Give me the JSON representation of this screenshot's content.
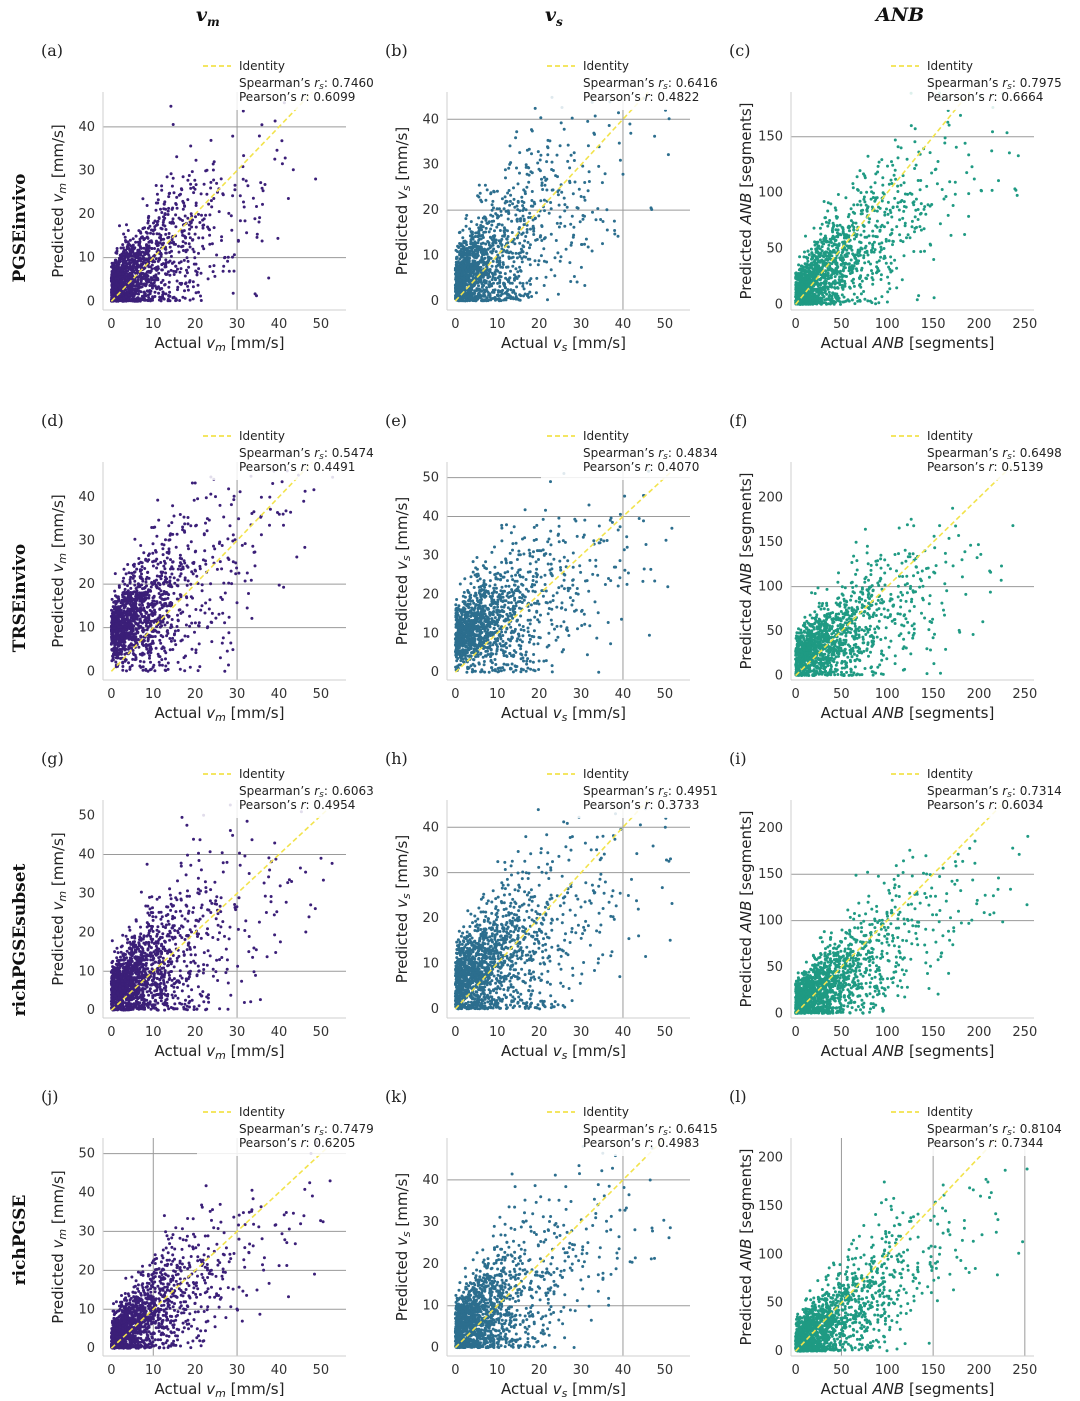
{
  "column_headers": [
    "v_m",
    "v_s",
    "ANB"
  ],
  "column_header_display": [
    {
      "main": "v",
      "sub": "m"
    },
    {
      "main": "v",
      "sub": "s"
    },
    {
      "main": "ANB",
      "sub": ""
    }
  ],
  "row_headers": [
    "PGSEinvivo",
    "TRSEinvivo",
    "richPGSEsubset",
    "richPGSE"
  ],
  "legend_identity": "Identity",
  "colors": {
    "vm": "#3b1f78",
    "vs": "#2c6e8e",
    "anb": "#1f9a83",
    "identity": "#f2e34c",
    "grid": "#9a9a9a"
  },
  "chart_data": [
    {
      "panel": "(a)",
      "type": "scatter",
      "row": 0,
      "col": 0,
      "metric": "vm",
      "xlabel": "Actual v_m [mm/s]",
      "ylabel": "Predicted v_m [mm/s]",
      "xlim": [
        -2,
        56
      ],
      "ylim": [
        -2,
        48
      ],
      "xticks": [
        0,
        10,
        20,
        30,
        40,
        50
      ],
      "yticks": [
        0,
        10,
        20,
        30,
        40
      ],
      "grid_x": [
        30
      ],
      "grid_y": [
        10,
        40
      ],
      "spearman": "0.7460",
      "pearson": "0.6099",
      "n_points": 1500,
      "trend_slope": 0.65,
      "trend_intercept": 3.0,
      "spread": 6.5,
      "x_scale": 9
    },
    {
      "panel": "(b)",
      "type": "scatter",
      "row": 0,
      "col": 1,
      "metric": "vs",
      "xlabel": "Actual v_s [mm/s]",
      "ylabel": "Predicted v_s [mm/s]",
      "xlim": [
        -2,
        56
      ],
      "ylim": [
        -2,
        46
      ],
      "xticks": [
        0,
        10,
        20,
        30,
        40,
        50
      ],
      "yticks": [
        0,
        10,
        20,
        30,
        40
      ],
      "grid_x": [
        40
      ],
      "grid_y": [
        20,
        40
      ],
      "spearman": "0.6416",
      "pearson": "0.4822",
      "n_points": 1500,
      "trend_slope": 0.6,
      "trend_intercept": 4.0,
      "spread": 7.5,
      "x_scale": 9
    },
    {
      "panel": "(c)",
      "type": "scatter",
      "row": 0,
      "col": 2,
      "metric": "anb",
      "xlabel": "Actual ANB [segments]",
      "ylabel": "Predicted ANB [segments]",
      "xlim": [
        -5,
        260
      ],
      "ylim": [
        -5,
        190
      ],
      "xticks": [
        0,
        50,
        100,
        150,
        200,
        250
      ],
      "yticks": [
        0,
        50,
        100,
        150
      ],
      "grid_x": [],
      "grid_y": [
        150
      ],
      "spearman": "0.7975",
      "pearson": "0.6664",
      "n_points": 1500,
      "trend_slope": 0.62,
      "trend_intercept": 8,
      "spread": 25,
      "x_scale": 45
    },
    {
      "panel": "(d)",
      "type": "scatter",
      "row": 1,
      "col": 0,
      "metric": "vm",
      "xlabel": "Actual v_m [mm/s]",
      "ylabel": "Predicted v_m [mm/s]",
      "xlim": [
        -2,
        56
      ],
      "ylim": [
        -2,
        48
      ],
      "xticks": [
        0,
        10,
        20,
        30,
        40,
        50
      ],
      "yticks": [
        0,
        10,
        20,
        30,
        40
      ],
      "grid_x": [
        30
      ],
      "grid_y": [
        10,
        20
      ],
      "spearman": "0.5474",
      "pearson": "0.4491",
      "n_points": 1400,
      "trend_slope": 0.55,
      "trend_intercept": 9.0,
      "spread": 7.5,
      "x_scale": 9
    },
    {
      "panel": "(e)",
      "type": "scatter",
      "row": 1,
      "col": 1,
      "metric": "vs",
      "xlabel": "Actual v_s [mm/s]",
      "ylabel": "Predicted v_s [mm/s]",
      "xlim": [
        -2,
        56
      ],
      "ylim": [
        -2,
        54
      ],
      "xticks": [
        0,
        10,
        20,
        30,
        40,
        50
      ],
      "yticks": [
        0,
        10,
        20,
        30,
        40,
        50
      ],
      "grid_x": [
        40
      ],
      "grid_y": [
        40,
        50
      ],
      "spearman": "0.4834",
      "pearson": "0.4070",
      "n_points": 1400,
      "trend_slope": 0.5,
      "trend_intercept": 9.0,
      "spread": 8.0,
      "x_scale": 10
    },
    {
      "panel": "(f)",
      "type": "scatter",
      "row": 1,
      "col": 2,
      "metric": "anb",
      "xlabel": "Actual ANB [segments]",
      "ylabel": "Predicted ANB [segments]",
      "xlim": [
        -5,
        260
      ],
      "ylim": [
        -5,
        240
      ],
      "xticks": [
        0,
        50,
        100,
        150,
        200,
        250
      ],
      "yticks": [
        0,
        50,
        100,
        150,
        200
      ],
      "grid_x": [],
      "grid_y": [
        100
      ],
      "spearman": "0.6498",
      "pearson": "0.5139",
      "n_points": 1400,
      "trend_slope": 0.55,
      "trend_intercept": 18,
      "spread": 28,
      "x_scale": 48
    },
    {
      "panel": "(g)",
      "type": "scatter",
      "row": 2,
      "col": 0,
      "metric": "vm",
      "xlabel": "Actual v_m [mm/s]",
      "ylabel": "Predicted v_m [mm/s]",
      "xlim": [
        -2,
        56
      ],
      "ylim": [
        -2,
        54
      ],
      "xticks": [
        0,
        10,
        20,
        30,
        40,
        50
      ],
      "yticks": [
        0,
        10,
        20,
        30,
        40,
        50
      ],
      "grid_x": [
        30
      ],
      "grid_y": [
        10,
        40
      ],
      "spearman": "0.6063",
      "pearson": "0.4954",
      "n_points": 1600,
      "trend_slope": 0.6,
      "trend_intercept": 5.0,
      "spread": 7.5,
      "x_scale": 9
    },
    {
      "panel": "(h)",
      "type": "scatter",
      "row": 2,
      "col": 1,
      "metric": "vs",
      "xlabel": "Actual v_s [mm/s]",
      "ylabel": "Predicted v_s [mm/s]",
      "xlim": [
        -2,
        56
      ],
      "ylim": [
        -2,
        46
      ],
      "xticks": [
        0,
        10,
        20,
        30,
        40,
        50
      ],
      "yticks": [
        0,
        10,
        20,
        30,
        40
      ],
      "grid_x": [
        40
      ],
      "grid_y": [
        30,
        40
      ],
      "spearman": "0.4951",
      "pearson": "0.3733",
      "n_points": 1600,
      "trend_slope": 0.5,
      "trend_intercept": 6.0,
      "spread": 8.0,
      "x_scale": 10
    },
    {
      "panel": "(i)",
      "type": "scatter",
      "row": 2,
      "col": 2,
      "metric": "anb",
      "xlabel": "Actual ANB [segments]",
      "ylabel": "Predicted ANB [segments]",
      "xlim": [
        -5,
        260
      ],
      "ylim": [
        -5,
        230
      ],
      "xticks": [
        0,
        50,
        100,
        150,
        200,
        250
      ],
      "yticks": [
        0,
        50,
        100,
        150,
        200
      ],
      "grid_x": [],
      "grid_y": [
        100,
        150
      ],
      "spearman": "0.7314",
      "pearson": "0.6034",
      "n_points": 1600,
      "trend_slope": 0.6,
      "trend_intercept": 10,
      "spread": 26,
      "x_scale": 45
    },
    {
      "panel": "(j)",
      "type": "scatter",
      "row": 3,
      "col": 0,
      "metric": "vm",
      "xlabel": "Actual v_m [mm/s]",
      "ylabel": "Predicted v_m [mm/s]",
      "xlim": [
        -2,
        56
      ],
      "ylim": [
        -2,
        54
      ],
      "xticks": [
        0,
        10,
        20,
        30,
        40,
        50
      ],
      "yticks": [
        0,
        10,
        20,
        30,
        40,
        50
      ],
      "grid_x": [
        10,
        30
      ],
      "grid_y": [
        10,
        20,
        30,
        50
      ],
      "spearman": "0.7479",
      "pearson": "0.6205",
      "n_points": 1500,
      "trend_slope": 0.68,
      "trend_intercept": 2.5,
      "spread": 6.0,
      "x_scale": 9
    },
    {
      "panel": "(k)",
      "type": "scatter",
      "row": 3,
      "col": 1,
      "metric": "vs",
      "xlabel": "Actual v_s [mm/s]",
      "ylabel": "Predicted v_s [mm/s]",
      "xlim": [
        -2,
        56
      ],
      "ylim": [
        -2,
        50
      ],
      "xticks": [
        0,
        10,
        20,
        30,
        40,
        50
      ],
      "yticks": [
        0,
        10,
        20,
        30,
        40
      ],
      "grid_x": [
        40
      ],
      "grid_y": [
        10,
        40
      ],
      "spearman": "0.6415",
      "pearson": "0.4983",
      "n_points": 1500,
      "trend_slope": 0.6,
      "trend_intercept": 4.0,
      "spread": 7.5,
      "x_scale": 9
    },
    {
      "panel": "(l)",
      "type": "scatter",
      "row": 3,
      "col": 2,
      "metric": "anb",
      "xlabel": "Actual ANB [segments]",
      "ylabel": "Predicted ANB [segments]",
      "xlim": [
        -5,
        260
      ],
      "ylim": [
        -5,
        220
      ],
      "xticks": [
        0,
        50,
        100,
        150,
        200,
        250
      ],
      "yticks": [
        0,
        50,
        100,
        150,
        200
      ],
      "grid_x": [
        50,
        150,
        250
      ],
      "grid_y": [],
      "spearman": "0.8104",
      "pearson": "0.7344",
      "n_points": 1500,
      "trend_slope": 0.62,
      "trend_intercept": 8,
      "spread": 24,
      "x_scale": 45
    }
  ]
}
